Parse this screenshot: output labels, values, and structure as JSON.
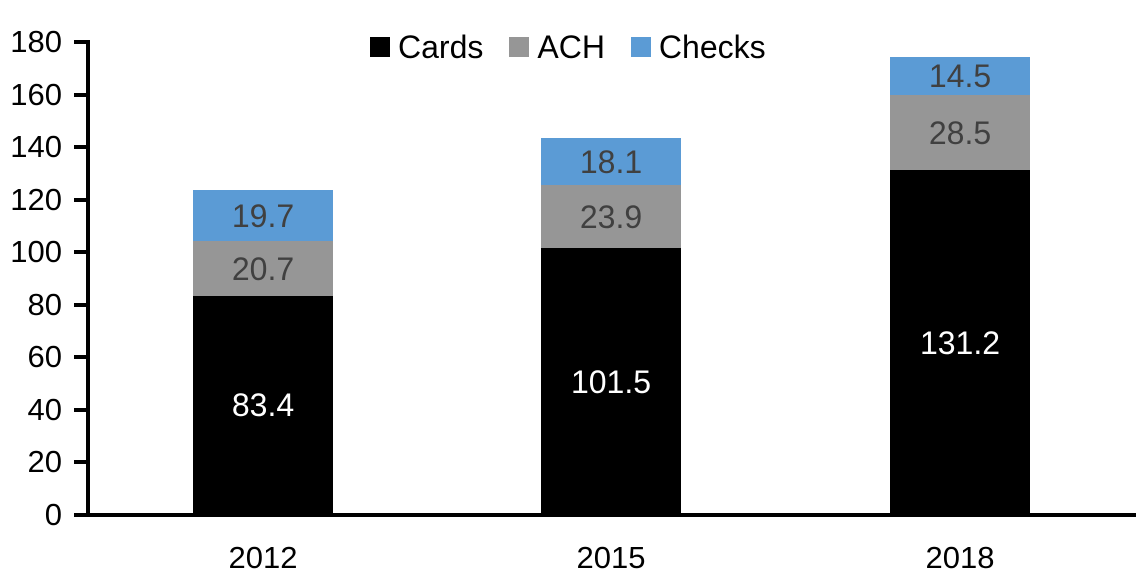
{
  "chart_data": {
    "type": "bar",
    "stacked": true,
    "title": "",
    "xlabel": "",
    "ylabel": "",
    "categories": [
      "2012",
      "2015",
      "2018"
    ],
    "series": [
      {
        "name": "Cards",
        "color": "#000000",
        "label_color": "#ffffff",
        "values": [
          83.4,
          101.5,
          131.2
        ]
      },
      {
        "name": "ACH",
        "color": "#969696",
        "label_color": "#404040",
        "values": [
          20.7,
          23.9,
          28.5
        ]
      },
      {
        "name": "Checks",
        "color": "#5B9BD5",
        "label_color": "#404040",
        "values": [
          19.7,
          18.1,
          14.5
        ]
      }
    ],
    "ylim": [
      0,
      180
    ],
    "ytick_step": 20,
    "ytick_labels": [
      "0",
      "20",
      "40",
      "60",
      "80",
      "100",
      "120",
      "140",
      "160",
      "180"
    ],
    "legend_position": "top",
    "legend": [
      "Cards",
      "ACH",
      "Checks"
    ],
    "grid": false,
    "axis_color": "#000000",
    "text_color": "#000000"
  }
}
